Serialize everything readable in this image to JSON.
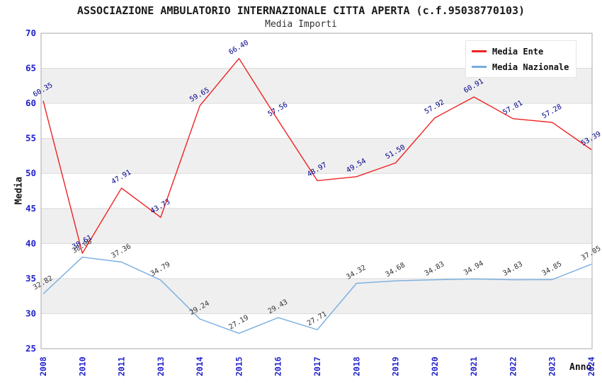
{
  "title": "ASSOCIAZIONE AMBULATORIO INTERNAZIONALE CITTA APERTA (c.f.95038770103)",
  "subtitle": "Media Importi",
  "chart_data": {
    "type": "line",
    "categories": [
      "2008",
      "2010",
      "2011",
      "2013",
      "2014",
      "2015",
      "2016",
      "2017",
      "2018",
      "2019",
      "2020",
      "2021",
      "2022",
      "2023",
      "2024"
    ],
    "series": [
      {
        "name": "Media Nazionale",
        "color": "#76ade0",
        "label_color": "#333333",
        "values": [
          32.82,
          38.06,
          37.36,
          34.79,
          29.24,
          27.19,
          29.43,
          27.71,
          34.32,
          34.68,
          34.83,
          34.94,
          34.83,
          34.85,
          37.05
        ]
      },
      {
        "name": "Media Ente",
        "color": "#ee2222",
        "label_color": "#00008b",
        "values": [
          60.35,
          38.61,
          47.91,
          43.73,
          59.65,
          66.4,
          57.56,
          48.97,
          49.54,
          51.5,
          57.92,
          60.91,
          57.81,
          57.28,
          53.39
        ]
      }
    ],
    "xlabel": "Anno",
    "ylabel": "Media",
    "ylim": [
      25,
      70
    ],
    "ytick_step": 5,
    "legend_position": "top-right",
    "grid": true,
    "band_fill": "#efefef",
    "grid_color": "#dcdcdc",
    "frame_color": "#aaaaaa",
    "tick_color": "#2222cc"
  }
}
